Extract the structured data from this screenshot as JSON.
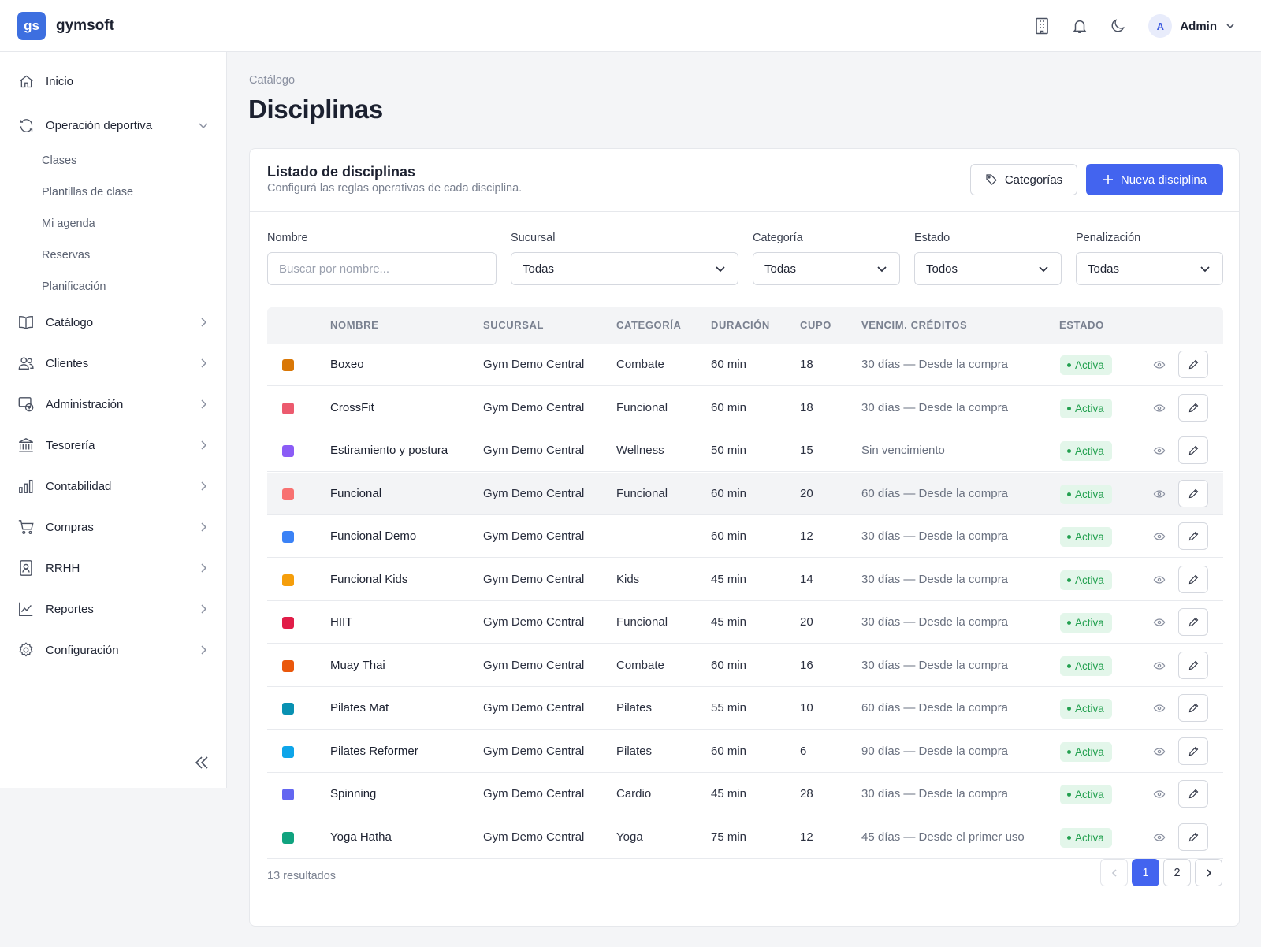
{
  "app": {
    "logo": "gs",
    "name": "gymsoft"
  },
  "header": {
    "icons": [
      "building-icon",
      "bell-icon",
      "moon-icon"
    ],
    "user": {
      "avatar": "A",
      "name": "Admin"
    }
  },
  "sidebar": {
    "items": [
      {
        "label": "Inicio",
        "icon": "home-icon"
      },
      {
        "label": "Operación deportiva",
        "icon": "refresh-icon",
        "expanded": true,
        "children": [
          "Clases",
          "Plantillas de clase",
          "Mi agenda",
          "Reservas",
          "Planificación"
        ]
      },
      {
        "label": "Catálogo",
        "icon": "book-icon"
      },
      {
        "label": "Clientes",
        "icon": "users-icon"
      },
      {
        "label": "Administración",
        "icon": "admin-icon"
      },
      {
        "label": "Tesorería",
        "icon": "bank-icon"
      },
      {
        "label": "Contabilidad",
        "icon": "bar-chart-icon"
      },
      {
        "label": "Compras",
        "icon": "cart-icon"
      },
      {
        "label": "RRHH",
        "icon": "id-badge-icon"
      },
      {
        "label": "Reportes",
        "icon": "line-chart-icon"
      },
      {
        "label": "Configuración",
        "icon": "gear-icon"
      }
    ]
  },
  "page": {
    "breadcrumb": "Catálogo",
    "title": "Disciplinas"
  },
  "card": {
    "title": "Listado de disciplinas",
    "subtitle": "Configurá las reglas operativas de cada disciplina.",
    "categories_button": "Categorías",
    "new_button": "Nueva disciplina"
  },
  "filters": {
    "nombre": {
      "label": "Nombre",
      "placeholder": "Buscar por nombre..."
    },
    "sucursal": {
      "label": "Sucursal",
      "value": "Todas"
    },
    "categoria": {
      "label": "Categoría",
      "value": "Todas"
    },
    "estado": {
      "label": "Estado",
      "value": "Todos"
    },
    "penalizacion": {
      "label": "Penalización",
      "value": "Todas"
    }
  },
  "table": {
    "columns": [
      "NOMBRE",
      "SUCURSAL",
      "CATEGORÍA",
      "DURACIÓN",
      "CUPO",
      "VENCIM. CRÉDITOS",
      "ESTADO"
    ],
    "rows": [
      {
        "color": "#d97706",
        "name": "Boxeo",
        "sucursal": "Gym Demo Central",
        "categoria": "Combate",
        "duracion": "60 min",
        "cupo": "18",
        "vencim": "30 días — Desde la compra",
        "estado": "Activa"
      },
      {
        "color": "#ec5a6e",
        "name": "CrossFit",
        "sucursal": "Gym Demo Central",
        "categoria": "Funcional",
        "duracion": "60 min",
        "cupo": "18",
        "vencim": "30 días — Desde la compra",
        "estado": "Activa"
      },
      {
        "color": "#8b5cf6",
        "name": "Estiramiento y postura",
        "sucursal": "Gym Demo Central",
        "categoria": "Wellness",
        "duracion": "50 min",
        "cupo": "15",
        "vencim": "Sin vencimiento",
        "estado": "Activa"
      },
      {
        "color": "#f87171",
        "name": "Funcional",
        "sucursal": "Gym Demo Central",
        "categoria": "Funcional",
        "duracion": "60 min",
        "cupo": "20",
        "vencim": "60 días — Desde la compra",
        "estado": "Activa",
        "highlighted": true
      },
      {
        "color": "#3b82f6",
        "name": "Funcional Demo",
        "sucursal": "Gym Demo Central",
        "categoria": "",
        "duracion": "60 min",
        "cupo": "12",
        "vencim": "30 días — Desde la compra",
        "estado": "Activa"
      },
      {
        "color": "#f59e0b",
        "name": "Funcional Kids",
        "sucursal": "Gym Demo Central",
        "categoria": "Kids",
        "duracion": "45 min",
        "cupo": "14",
        "vencim": "30 días — Desde la compra",
        "estado": "Activa"
      },
      {
        "color": "#e11d48",
        "name": "HIIT",
        "sucursal": "Gym Demo Central",
        "categoria": "Funcional",
        "duracion": "45 min",
        "cupo": "20",
        "vencim": "30 días — Desde la compra",
        "estado": "Activa"
      },
      {
        "color": "#ea580c",
        "name": "Muay Thai",
        "sucursal": "Gym Demo Central",
        "categoria": "Combate",
        "duracion": "60 min",
        "cupo": "16",
        "vencim": "30 días — Desde la compra",
        "estado": "Activa"
      },
      {
        "color": "#0891b2",
        "name": "Pilates Mat",
        "sucursal": "Gym Demo Central",
        "categoria": "Pilates",
        "duracion": "55 min",
        "cupo": "10",
        "vencim": "60 días — Desde la compra",
        "estado": "Activa"
      },
      {
        "color": "#0ea5e9",
        "name": "Pilates Reformer",
        "sucursal": "Gym Demo Central",
        "categoria": "Pilates",
        "duracion": "60 min",
        "cupo": "6",
        "vencim": "90 días — Desde la compra",
        "estado": "Activa"
      },
      {
        "color": "#6366f1",
        "name": "Spinning",
        "sucursal": "Gym Demo Central",
        "categoria": "Cardio",
        "duracion": "45 min",
        "cupo": "28",
        "vencim": "30 días — Desde la compra",
        "estado": "Activa"
      },
      {
        "color": "#10a37f",
        "name": "Yoga Hatha",
        "sucursal": "Gym Demo Central",
        "categoria": "Yoga",
        "duracion": "75 min",
        "cupo": "12",
        "vencim": "45 días — Desde el primer uso",
        "estado": "Activa"
      }
    ]
  },
  "footer": {
    "results": "13 resultados",
    "pages": [
      "1",
      "2"
    ],
    "current_page": "1"
  }
}
